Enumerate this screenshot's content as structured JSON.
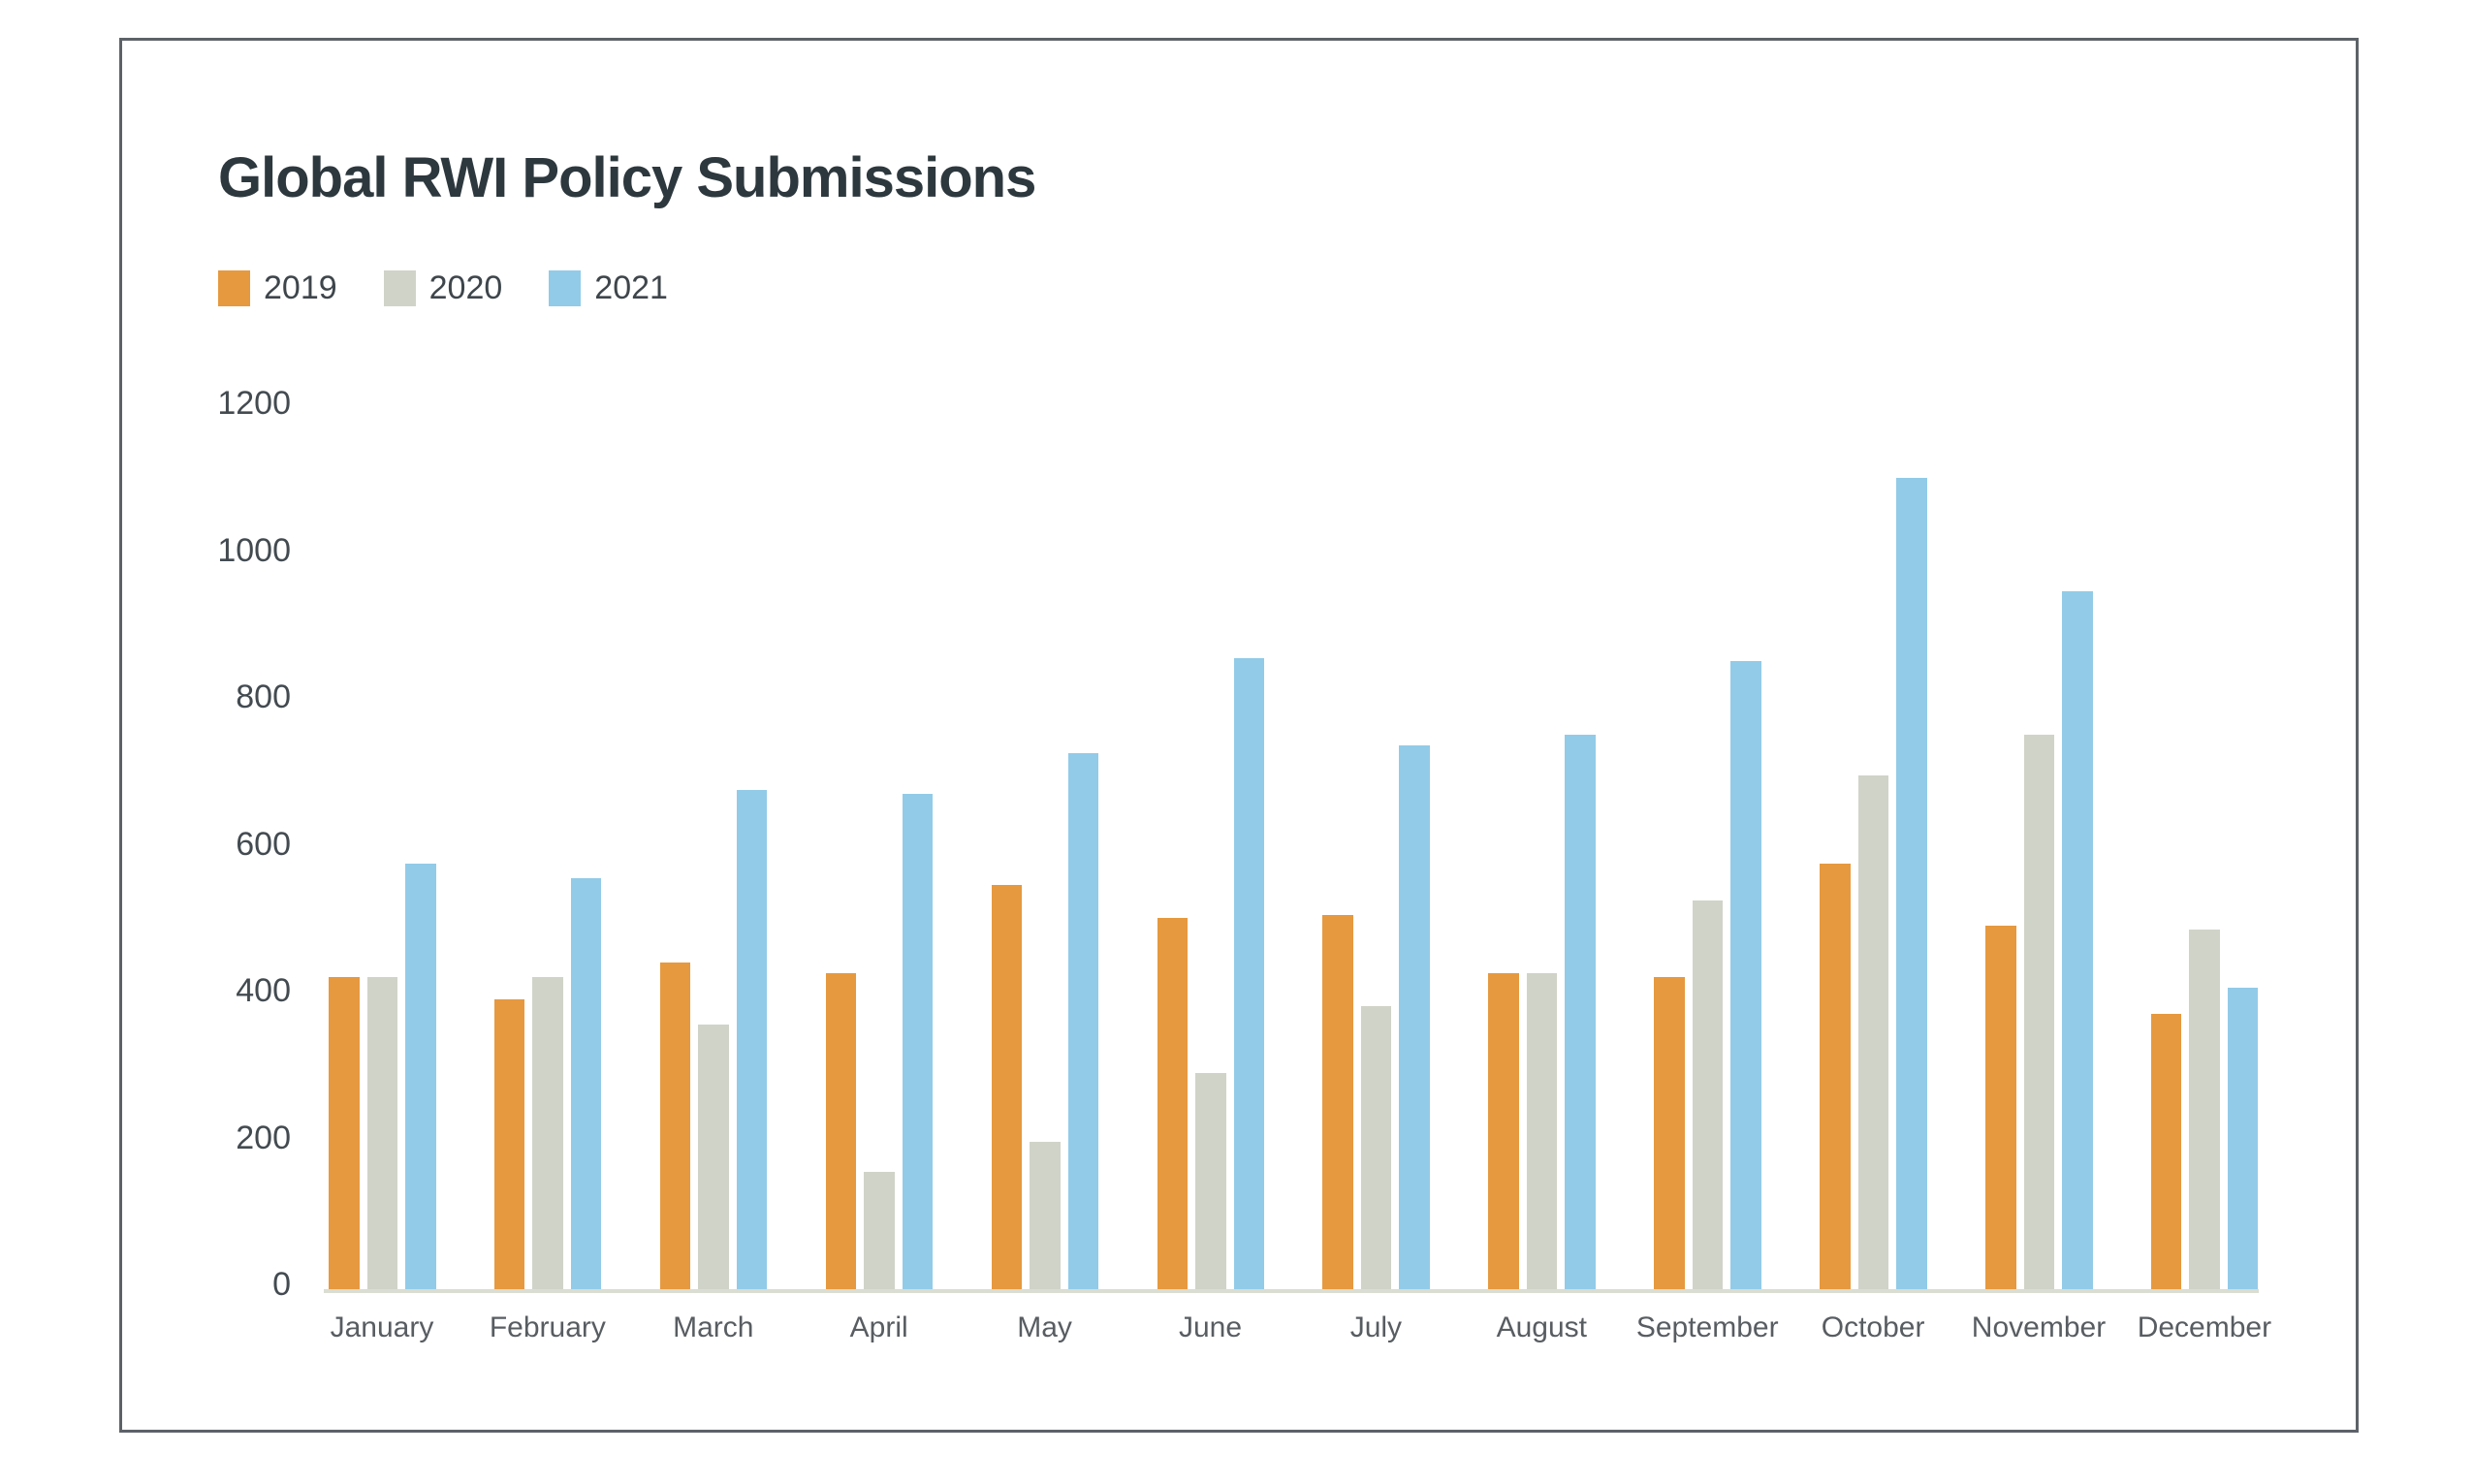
{
  "title": "Global RWI Policy Submissions",
  "legend": [
    {
      "label": "2019",
      "color": "#E6993F"
    },
    {
      "label": "2020",
      "color": "#D0D3C8"
    },
    {
      "label": "2021",
      "color": "#92CBE8"
    }
  ],
  "colors": {
    "title_text": "#2D383E",
    "y_axis_label": "#434B51",
    "x_axis_label": "#585D62",
    "axis_line": "#DADDD3",
    "frame_border": "#5C6268",
    "background": "#FFFFFF"
  },
  "chart_data": {
    "type": "bar",
    "title": "Global RWI Policy Submissions",
    "categories": [
      "January",
      "February",
      "March",
      "April",
      "May",
      "June",
      "July",
      "August",
      "September",
      "October",
      "November",
      "December"
    ],
    "series": [
      {
        "name": "2019",
        "color": "#E6993F",
        "values": [
          425,
          395,
          445,
          430,
          550,
          505,
          510,
          430,
          425,
          580,
          495,
          375
        ]
      },
      {
        "name": "2020",
        "color": "#D0D3C8",
        "values": [
          425,
          425,
          360,
          160,
          200,
          295,
          385,
          430,
          530,
          700,
          755,
          490
        ]
      },
      {
        "name": "2021",
        "color": "#92CBE8",
        "values": [
          580,
          560,
          680,
          675,
          730,
          860,
          740,
          755,
          855,
          1105,
          950,
          410
        ]
      }
    ],
    "xlabel": "",
    "ylabel": "",
    "ylim": [
      0,
      1200
    ],
    "yticks": [
      0,
      200,
      400,
      600,
      800,
      1000,
      1200
    ],
    "grid": false,
    "legend_position": "top-left"
  }
}
